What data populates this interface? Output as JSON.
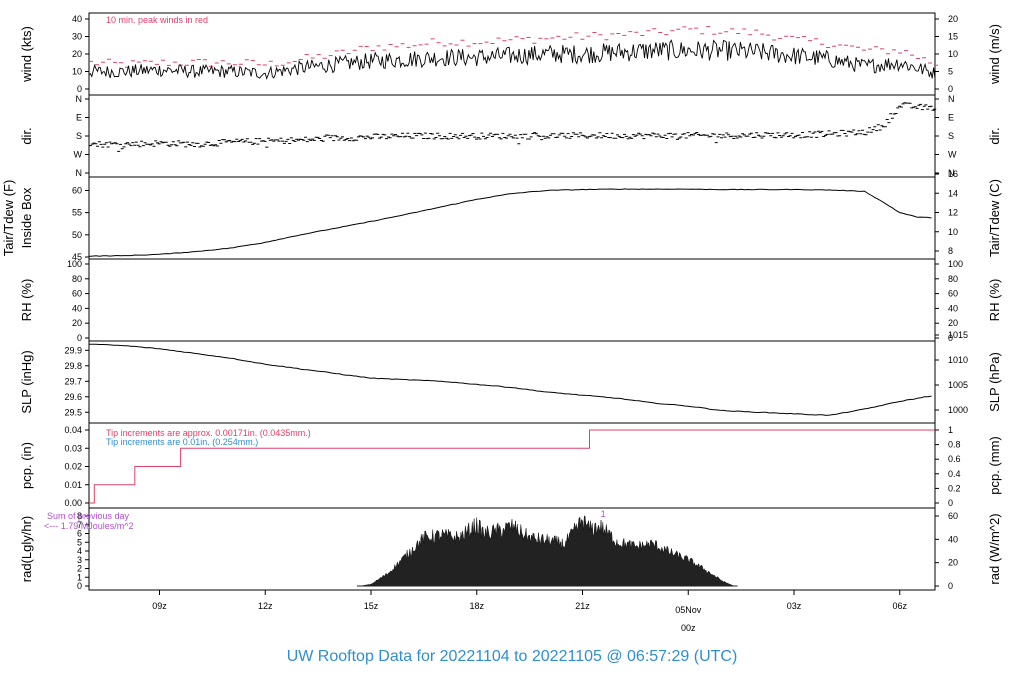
{
  "title": "UW Rooftop Data for 20221104  to  20221105 @ 06:57:29  (UTC)",
  "colors": {
    "line": "#000000",
    "peak": "#e0406a",
    "tip": "#2f8fce",
    "sum": "#b050d0",
    "title": "#2f8fce",
    "date": "#e0406a"
  },
  "time_axis": {
    "start_hour": 7,
    "end_hour": 31,
    "tick_hours": [
      9,
      12,
      15,
      18,
      21,
      27,
      30
    ],
    "tick_labels": [
      "09z",
      "12z",
      "15z",
      "18z",
      "21z",
      "03z",
      "06z"
    ],
    "midnight_hour": 24,
    "midnight_date": "05Nov",
    "midnight_label": "00z"
  },
  "chart_data": [
    {
      "type": "line",
      "panel": "wind",
      "ylabel_left": "wind (kts)",
      "ylabel_right": "wind (m/s)",
      "ylim": [
        0,
        40
      ],
      "yticks_left": [
        "0",
        "10",
        "20",
        "30",
        "40"
      ],
      "ylim_right": [
        0,
        20
      ],
      "yticks_right": [
        "0",
        "5",
        "10",
        "15",
        "20"
      ],
      "annotation": "10 min. peak winds in red",
      "series": [
        {
          "x": [
            7,
            8,
            9,
            10,
            11,
            12,
            13,
            14,
            15,
            16,
            17,
            18,
            19,
            20,
            21,
            22,
            23,
            24,
            25,
            26,
            27,
            28,
            29,
            30,
            30.5,
            31
          ],
          "values": [
            10,
            10,
            11,
            10,
            10,
            9,
            12,
            14,
            16,
            17,
            18,
            18,
            19,
            20,
            20,
            21,
            22,
            22,
            22,
            21,
            19,
            17,
            13,
            15,
            12,
            9
          ]
        },
        {
          "x": [
            7,
            8,
            9,
            10,
            11,
            12,
            13,
            14,
            15,
            16,
            17,
            18,
            19,
            20,
            21,
            22,
            23,
            24,
            25,
            26,
            27,
            28,
            29,
            30,
            30.5,
            31
          ],
          "values": [
            15,
            14,
            15,
            15,
            15,
            14,
            17,
            20,
            24,
            25,
            27,
            27,
            28,
            29,
            30,
            31,
            32,
            34,
            33,
            32,
            28,
            26,
            22,
            22,
            18,
            14
          ]
        }
      ]
    },
    {
      "type": "scatter",
      "panel": "dir",
      "ylabel_left": "dir.",
      "ylabel_right": "dir.",
      "yticks_left": [
        "N",
        "E",
        "S",
        "W",
        "N"
      ],
      "yticks_right": [
        "N",
        "E",
        "S",
        "W",
        "N"
      ],
      "ylim": [
        0,
        360
      ],
      "x": [
        7,
        8,
        9,
        10,
        11,
        12,
        13,
        14,
        15,
        16,
        17,
        18,
        19,
        20,
        21,
        22,
        23,
        24,
        25,
        26,
        27,
        28,
        29,
        29.5,
        30,
        30.5,
        31
      ],
      "values": [
        140,
        140,
        145,
        140,
        150,
        155,
        160,
        170,
        175,
        180,
        180,
        180,
        180,
        180,
        182,
        182,
        182,
        182,
        182,
        185,
        185,
        190,
        200,
        230,
        330,
        320,
        315
      ]
    },
    {
      "type": "line",
      "panel": "temp",
      "ylabel_left": "Tair/Tdew (F)",
      "ylabel_left2": "Inside Box",
      "ylabel_right": "Tair/Tdew (C)",
      "ylim": [
        45,
        61
      ],
      "yticks_left": [
        "45",
        "50",
        "55",
        "60"
      ],
      "yticks_right": [
        "8",
        "10",
        "12",
        "14",
        "16"
      ],
      "x": [
        7,
        8,
        9,
        10,
        11,
        12,
        13,
        14,
        15,
        16,
        17,
        18,
        19,
        20,
        21,
        22,
        23,
        24,
        25,
        26,
        27,
        28,
        29,
        29.5,
        30,
        30.5,
        31
      ],
      "values": [
        45.2,
        45.3,
        45.6,
        46.2,
        47.0,
        48.3,
        50.0,
        51.5,
        53.0,
        54.6,
        56.3,
        58.0,
        59.3,
        60.0,
        60.2,
        60.3,
        60.3,
        60.3,
        60.2,
        60.2,
        60.2,
        60.1,
        59.8,
        57.5,
        55.0,
        54.0,
        53.8
      ]
    },
    {
      "type": "line",
      "panel": "rh",
      "ylabel_left": "RH (%)",
      "ylabel_right": "RH (%)",
      "ylim": [
        0,
        100
      ],
      "yticks_left": [
        "0",
        "20",
        "40",
        "60",
        "80",
        "100"
      ],
      "yticks_right": [
        "0",
        "20",
        "40",
        "60",
        "80",
        "100"
      ],
      "x": [],
      "values": []
    },
    {
      "type": "line",
      "panel": "slp",
      "ylabel_left": "SLP (inHg)",
      "ylabel_right": "SLP (hPa)",
      "ylim": [
        29.45,
        29.96
      ],
      "yticks_left": [
        "29.5",
        "29.6",
        "29.7",
        "29.8",
        "29.9"
      ],
      "yticks_right": [
        "1000",
        "1005",
        "1010",
        "1015"
      ],
      "x": [
        7,
        8,
        9,
        10,
        11,
        12,
        13,
        14,
        15,
        16,
        17,
        18,
        19,
        20,
        21,
        22,
        23,
        24,
        25,
        26,
        27,
        28,
        29,
        30,
        31
      ],
      "values": [
        29.94,
        29.93,
        29.91,
        29.88,
        29.85,
        29.81,
        29.78,
        29.75,
        29.72,
        29.71,
        29.7,
        29.68,
        29.66,
        29.63,
        29.61,
        29.59,
        29.56,
        29.54,
        29.51,
        29.5,
        29.49,
        29.48,
        29.52,
        29.57,
        29.61
      ]
    },
    {
      "type": "line",
      "panel": "pcp",
      "ylabel_left": "pcp. (in)",
      "ylabel_right": "pcp. (mm)",
      "ylim": [
        0,
        0.04
      ],
      "yticks_left": [
        "0.00",
        "0.01",
        "0.02",
        "0.03",
        "0.04"
      ],
      "yticks_right": [
        "0",
        "0.2",
        "0.4",
        "0.6",
        "0.8",
        "1"
      ],
      "note1": "Tip increments are approx. 0.00171in. (0.0435mm.)",
      "note2": "Tip increments are 0.01in. (0.254mm.)",
      "x": [
        7,
        7.15,
        7.15,
        8.3,
        8.3,
        9.6,
        9.6,
        21.2,
        21.2,
        31
      ],
      "values": [
        0,
        0,
        0.01,
        0.01,
        0.02,
        0.02,
        0.03,
        0.03,
        0.04,
        0.04
      ]
    },
    {
      "type": "area",
      "panel": "rad",
      "ylabel_left": "rad(Lgly/hr)",
      "ylabel_right": "rad (W/m^2)",
      "ylim": [
        0,
        8
      ],
      "yticks_left": [
        "0",
        "1",
        "2",
        "3",
        "4",
        "5",
        "6",
        "7",
        "8"
      ],
      "yticks_right": [
        "0",
        "20",
        "40",
        "60"
      ],
      "sum_note1": "Sum of previous day",
      "sum_note2": "<--- 1.79 MJoules/m^2",
      "marker": "1",
      "marker_x": 21.5,
      "x": [
        14.7,
        15,
        15.5,
        16,
        16.5,
        17,
        17.5,
        18,
        18.2,
        18.5,
        19,
        19.5,
        20,
        20.5,
        21,
        21.2,
        21.5,
        22,
        22.5,
        23,
        23.5,
        24,
        24.5,
        25,
        25.3
      ],
      "values": [
        0,
        0.2,
        1.5,
        3.5,
        5.5,
        5.8,
        5.5,
        7.0,
        6.0,
        6.2,
        6.8,
        5.5,
        5.2,
        4.8,
        7.5,
        6.5,
        6.8,
        5.0,
        4.5,
        4.8,
        3.8,
        3.0,
        1.8,
        0.5,
        0
      ]
    }
  ]
}
